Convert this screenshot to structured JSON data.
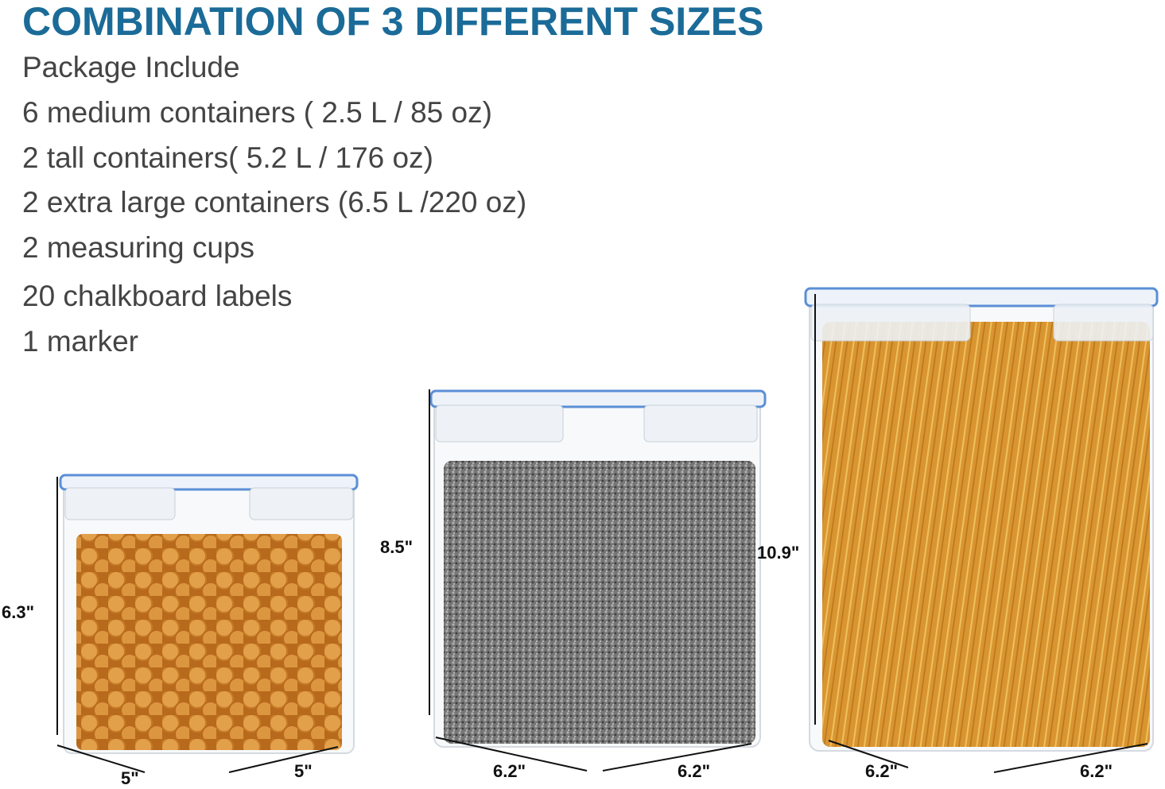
{
  "title": "COMBINATION OF 3 DIFFERENT SIZES",
  "package": {
    "heading": "Package Include",
    "items": [
      "6 medium containers ( 2.5 L / 85 oz)",
      "2 tall containers( 5.2 L / 176 oz)",
      "2 extra large containers (6.5 L /220 oz)",
      "2 measuring cups",
      "20 chalkboard labels",
      "1 marker"
    ]
  },
  "containers": [
    {
      "height": "6.3\"",
      "width": "5\"",
      "depth": "5\"",
      "contents_color": "#d98b2f"
    },
    {
      "height": "8.5\"",
      "width": "6.2\"",
      "depth": "6.2\"",
      "contents_color": "#6e6e6e"
    },
    {
      "height": "10.9\"",
      "width": "6.2\"",
      "depth": "6.2\"",
      "contents_color": "#dc9a34"
    }
  ],
  "colors": {
    "title": "#1b6b98",
    "lid": "#5b8fd6",
    "text": "#444444"
  }
}
